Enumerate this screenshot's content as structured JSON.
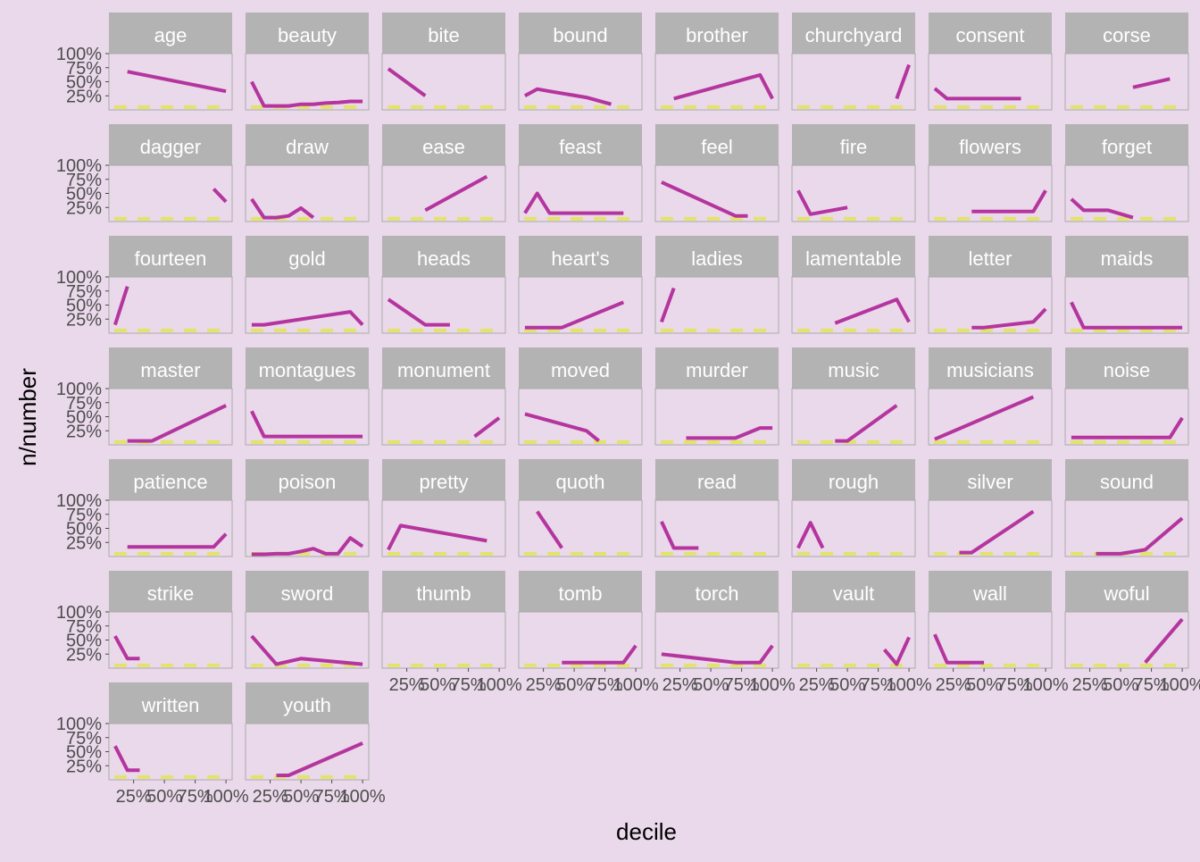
{
  "chart_data": {
    "type": "line",
    "xlabel": "decile",
    "ylabel": "n/number",
    "x_ticks": [
      "25%",
      "50%",
      "75%",
      "100%"
    ],
    "x_tick_values": [
      0.25,
      0.5,
      0.75,
      1.0
    ],
    "y_ticks": [
      "25%",
      "50%",
      "75%",
      "100%"
    ],
    "y_tick_values": [
      0.25,
      0.5,
      0.75,
      1.0
    ],
    "xlim": [
      0.05,
      1.05
    ],
    "ylim": [
      0.0,
      1.0
    ],
    "baseline_value": 0.05,
    "colors": {
      "background": "#ead9ea",
      "panel_background": "#ead9ea",
      "panel_border": "#aaaaaa",
      "strip_background": "#b3b3b3",
      "strip_text": "#ffffff",
      "line": "#b5359f",
      "baseline": "#e3e36a",
      "axis_text": "#4d4d4d",
      "title_text": "#000000"
    },
    "facets": [
      {
        "label": "age",
        "segments": [
          [
            [
              0.2,
              0.68
            ],
            [
              1.0,
              0.33
            ]
          ]
        ]
      },
      {
        "label": "beauty",
        "segments": [
          [
            [
              0.1,
              0.5
            ],
            [
              0.2,
              0.07
            ],
            [
              0.3,
              0.07
            ],
            [
              0.4,
              0.07
            ],
            [
              0.5,
              0.1
            ],
            [
              0.6,
              0.1
            ],
            [
              0.7,
              0.12
            ],
            [
              0.8,
              0.13
            ],
            [
              0.9,
              0.15
            ],
            [
              1.0,
              0.15
            ]
          ]
        ]
      },
      {
        "label": "bite",
        "segments": [
          [
            [
              0.1,
              0.73
            ],
            [
              0.4,
              0.25
            ]
          ]
        ]
      },
      {
        "label": "bound",
        "segments": [
          [
            [
              0.1,
              0.25
            ],
            [
              0.2,
              0.37
            ],
            [
              0.3,
              0.33
            ],
            [
              0.6,
              0.22
            ],
            [
              0.8,
              0.1
            ]
          ]
        ]
      },
      {
        "label": "brother",
        "segments": [
          [
            [
              0.2,
              0.2
            ],
            [
              0.9,
              0.62
            ],
            [
              1.0,
              0.2
            ]
          ]
        ]
      },
      {
        "label": "churchyard",
        "segments": [
          [
            [
              0.9,
              0.2
            ],
            [
              1.0,
              0.8
            ]
          ]
        ]
      },
      {
        "label": "consent",
        "segments": [
          [
            [
              0.1,
              0.38
            ],
            [
              0.2,
              0.2
            ],
            [
              0.8,
              0.2
            ]
          ]
        ]
      },
      {
        "label": "corse",
        "segments": [
          [
            [
              0.6,
              0.4
            ],
            [
              0.9,
              0.55
            ]
          ]
        ]
      },
      {
        "label": "dagger",
        "segments": [
          [
            [
              0.9,
              0.58
            ],
            [
              1.0,
              0.35
            ]
          ]
        ]
      },
      {
        "label": "draw",
        "segments": [
          [
            [
              0.1,
              0.4
            ],
            [
              0.2,
              0.07
            ],
            [
              0.3,
              0.07
            ],
            [
              0.4,
              0.1
            ],
            [
              0.5,
              0.24
            ],
            [
              0.6,
              0.07
            ]
          ]
        ]
      },
      {
        "label": "ease",
        "segments": [
          [
            [
              0.4,
              0.2
            ],
            [
              0.9,
              0.8
            ]
          ]
        ]
      },
      {
        "label": "feast",
        "segments": [
          [
            [
              0.1,
              0.15
            ],
            [
              0.2,
              0.5
            ],
            [
              0.3,
              0.15
            ],
            [
              0.9,
              0.15
            ]
          ]
        ]
      },
      {
        "label": "feel",
        "segments": [
          [
            [
              0.1,
              0.7
            ],
            [
              0.7,
              0.1
            ],
            [
              0.8,
              0.1
            ]
          ]
        ]
      },
      {
        "label": "fire",
        "segments": [
          [
            [
              0.1,
              0.55
            ],
            [
              0.2,
              0.13
            ],
            [
              0.5,
              0.25
            ]
          ]
        ]
      },
      {
        "label": "flowers",
        "segments": [
          [
            [
              0.4,
              0.18
            ],
            [
              0.9,
              0.18
            ],
            [
              1.0,
              0.55
            ]
          ]
        ]
      },
      {
        "label": "forget",
        "segments": [
          [
            [
              0.1,
              0.4
            ],
            [
              0.2,
              0.2
            ],
            [
              0.4,
              0.2
            ],
            [
              0.6,
              0.07
            ]
          ]
        ]
      },
      {
        "label": "fourteen",
        "segments": [
          [
            [
              0.1,
              0.15
            ],
            [
              0.2,
              0.83
            ]
          ]
        ]
      },
      {
        "label": "gold",
        "segments": [
          [
            [
              0.1,
              0.15
            ],
            [
              0.2,
              0.15
            ],
            [
              0.9,
              0.38
            ],
            [
              1.0,
              0.15
            ]
          ]
        ]
      },
      {
        "label": "heads",
        "segments": [
          [
            [
              0.1,
              0.6
            ],
            [
              0.4,
              0.15
            ],
            [
              0.6,
              0.15
            ]
          ]
        ]
      },
      {
        "label": "heart's",
        "segments": [
          [
            [
              0.1,
              0.1
            ],
            [
              0.4,
              0.1
            ],
            [
              0.9,
              0.55
            ]
          ]
        ]
      },
      {
        "label": "ladies",
        "segments": [
          [
            [
              0.1,
              0.2
            ],
            [
              0.2,
              0.8
            ]
          ]
        ]
      },
      {
        "label": "lamentable",
        "segments": [
          [
            [
              0.4,
              0.18
            ],
            [
              0.9,
              0.6
            ],
            [
              1.0,
              0.2
            ]
          ]
        ]
      },
      {
        "label": "letter",
        "segments": [
          [
            [
              0.4,
              0.1
            ],
            [
              0.5,
              0.1
            ],
            [
              0.9,
              0.2
            ],
            [
              1.0,
              0.43
            ]
          ]
        ]
      },
      {
        "label": "maids",
        "segments": [
          [
            [
              0.1,
              0.55
            ],
            [
              0.2,
              0.1
            ],
            [
              1.0,
              0.1
            ]
          ]
        ]
      },
      {
        "label": "master",
        "segments": [
          [
            [
              0.2,
              0.07
            ],
            [
              0.3,
              0.07
            ],
            [
              0.4,
              0.07
            ],
            [
              1.0,
              0.7
            ]
          ]
        ]
      },
      {
        "label": "montagues",
        "segments": [
          [
            [
              0.1,
              0.6
            ],
            [
              0.2,
              0.15
            ],
            [
              1.0,
              0.15
            ]
          ]
        ]
      },
      {
        "label": "monument",
        "segments": [
          [
            [
              0.8,
              0.15
            ],
            [
              1.0,
              0.48
            ]
          ]
        ]
      },
      {
        "label": "moved",
        "segments": [
          [
            [
              0.1,
              0.55
            ],
            [
              0.6,
              0.25
            ],
            [
              0.7,
              0.07
            ]
          ]
        ]
      },
      {
        "label": "murder",
        "segments": [
          [
            [
              0.3,
              0.12
            ],
            [
              0.4,
              0.12
            ],
            [
              0.7,
              0.12
            ],
            [
              0.9,
              0.3
            ],
            [
              1.0,
              0.3
            ]
          ]
        ]
      },
      {
        "label": "music",
        "segments": [
          [
            [
              0.4,
              0.07
            ],
            [
              0.5,
              0.07
            ],
            [
              0.9,
              0.7
            ]
          ]
        ]
      },
      {
        "label": "musicians",
        "segments": [
          [
            [
              0.1,
              0.1
            ],
            [
              0.9,
              0.85
            ]
          ]
        ]
      },
      {
        "label": "noise",
        "segments": [
          [
            [
              0.1,
              0.13
            ],
            [
              0.9,
              0.13
            ],
            [
              1.0,
              0.48
            ]
          ]
        ]
      },
      {
        "label": "patience",
        "segments": [
          [
            [
              0.2,
              0.17
            ],
            [
              0.9,
              0.17
            ],
            [
              1.0,
              0.4
            ]
          ]
        ]
      },
      {
        "label": "poison",
        "segments": [
          [
            [
              0.1,
              0.04
            ],
            [
              0.2,
              0.04
            ],
            [
              0.3,
              0.05
            ],
            [
              0.4,
              0.05
            ],
            [
              0.5,
              0.09
            ],
            [
              0.6,
              0.14
            ],
            [
              0.7,
              0.05
            ],
            [
              0.8,
              0.05
            ],
            [
              0.9,
              0.33
            ],
            [
              1.0,
              0.18
            ]
          ]
        ]
      },
      {
        "label": "pretty",
        "segments": [
          [
            [
              0.1,
              0.12
            ],
            [
              0.2,
              0.55
            ],
            [
              0.9,
              0.28
            ]
          ]
        ]
      },
      {
        "label": "quoth",
        "segments": [
          [
            [
              0.2,
              0.8
            ],
            [
              0.4,
              0.15
            ]
          ]
        ]
      },
      {
        "label": "read",
        "segments": [
          [
            [
              0.1,
              0.62
            ],
            [
              0.2,
              0.15
            ],
            [
              0.4,
              0.15
            ]
          ]
        ]
      },
      {
        "label": "rough",
        "segments": [
          [
            [
              0.1,
              0.15
            ],
            [
              0.2,
              0.6
            ],
            [
              0.3,
              0.15
            ]
          ]
        ]
      },
      {
        "label": "silver",
        "segments": [
          [
            [
              0.3,
              0.07
            ],
            [
              0.4,
              0.07
            ],
            [
              0.9,
              0.8
            ]
          ]
        ]
      },
      {
        "label": "sound",
        "segments": [
          [
            [
              0.3,
              0.05
            ],
            [
              0.4,
              0.05
            ],
            [
              0.5,
              0.05
            ],
            [
              0.7,
              0.12
            ],
            [
              1.0,
              0.68
            ]
          ]
        ]
      },
      {
        "label": "strike",
        "segments": [
          [
            [
              0.1,
              0.57
            ],
            [
              0.2,
              0.17
            ],
            [
              0.3,
              0.17
            ]
          ]
        ]
      },
      {
        "label": "sword",
        "segments": [
          [
            [
              0.1,
              0.57
            ],
            [
              0.3,
              0.07
            ],
            [
              0.5,
              0.17
            ],
            [
              1.0,
              0.07
            ]
          ]
        ]
      },
      {
        "label": "thumb",
        "segments": []
      },
      {
        "label": "tomb",
        "segments": [
          [
            [
              0.4,
              0.1
            ],
            [
              0.9,
              0.1
            ],
            [
              1.0,
              0.4
            ]
          ]
        ]
      },
      {
        "label": "torch",
        "segments": [
          [
            [
              0.1,
              0.25
            ],
            [
              0.7,
              0.1
            ],
            [
              0.9,
              0.1
            ],
            [
              1.0,
              0.4
            ]
          ]
        ]
      },
      {
        "label": "vault",
        "segments": [
          [
            [
              0.8,
              0.33
            ],
            [
              0.9,
              0.07
            ],
            [
              1.0,
              0.55
            ]
          ]
        ]
      },
      {
        "label": "wall",
        "segments": [
          [
            [
              0.1,
              0.6
            ],
            [
              0.2,
              0.1
            ],
            [
              0.5,
              0.1
            ]
          ]
        ]
      },
      {
        "label": "woful",
        "segments": [
          [
            [
              0.7,
              0.1
            ],
            [
              1.0,
              0.87
            ]
          ]
        ]
      },
      {
        "label": "written",
        "segments": [
          [
            [
              0.1,
              0.6
            ],
            [
              0.2,
              0.17
            ],
            [
              0.3,
              0.17
            ]
          ]
        ]
      },
      {
        "label": "youth",
        "segments": [
          [
            [
              0.3,
              0.08
            ],
            [
              0.4,
              0.08
            ],
            [
              1.0,
              0.65
            ]
          ]
        ]
      }
    ]
  }
}
